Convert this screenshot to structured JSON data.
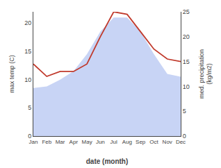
{
  "chart_data": {
    "type": "area",
    "categories": [
      "Jan",
      "Feb",
      "Mar",
      "Apr",
      "May",
      "Jun",
      "Jul",
      "Aug",
      "Sep",
      "Oct",
      "Nov",
      "Dec"
    ],
    "series": [
      {
        "type": "area",
        "color": "#c8d4f5",
        "values": [
          8.5,
          8.8,
          10.0,
          11.5,
          14.5,
          18.5,
          21.0,
          21.0,
          18.5,
          14.5,
          11.0,
          10.5
        ]
      },
      {
        "type": "line",
        "color": "#c0392b",
        "axis": "y2",
        "values": [
          14.5,
          12.0,
          13.0,
          13.0,
          14.5,
          20.0,
          25.0,
          24.5,
          21.0,
          17.5,
          15.5,
          15.0
        ]
      }
    ],
    "xlabel": "date (month)",
    "ylabel": "max temp (C)",
    "y2label": "med. precipitation\n(kg/m2)",
    "ylim": [
      0,
      22
    ],
    "yticks": [
      0,
      5,
      10,
      15,
      20
    ],
    "y2lim": [
      0,
      25
    ],
    "y2ticks": [
      0,
      5,
      10,
      15,
      20,
      25
    ],
    "grid": false
  }
}
